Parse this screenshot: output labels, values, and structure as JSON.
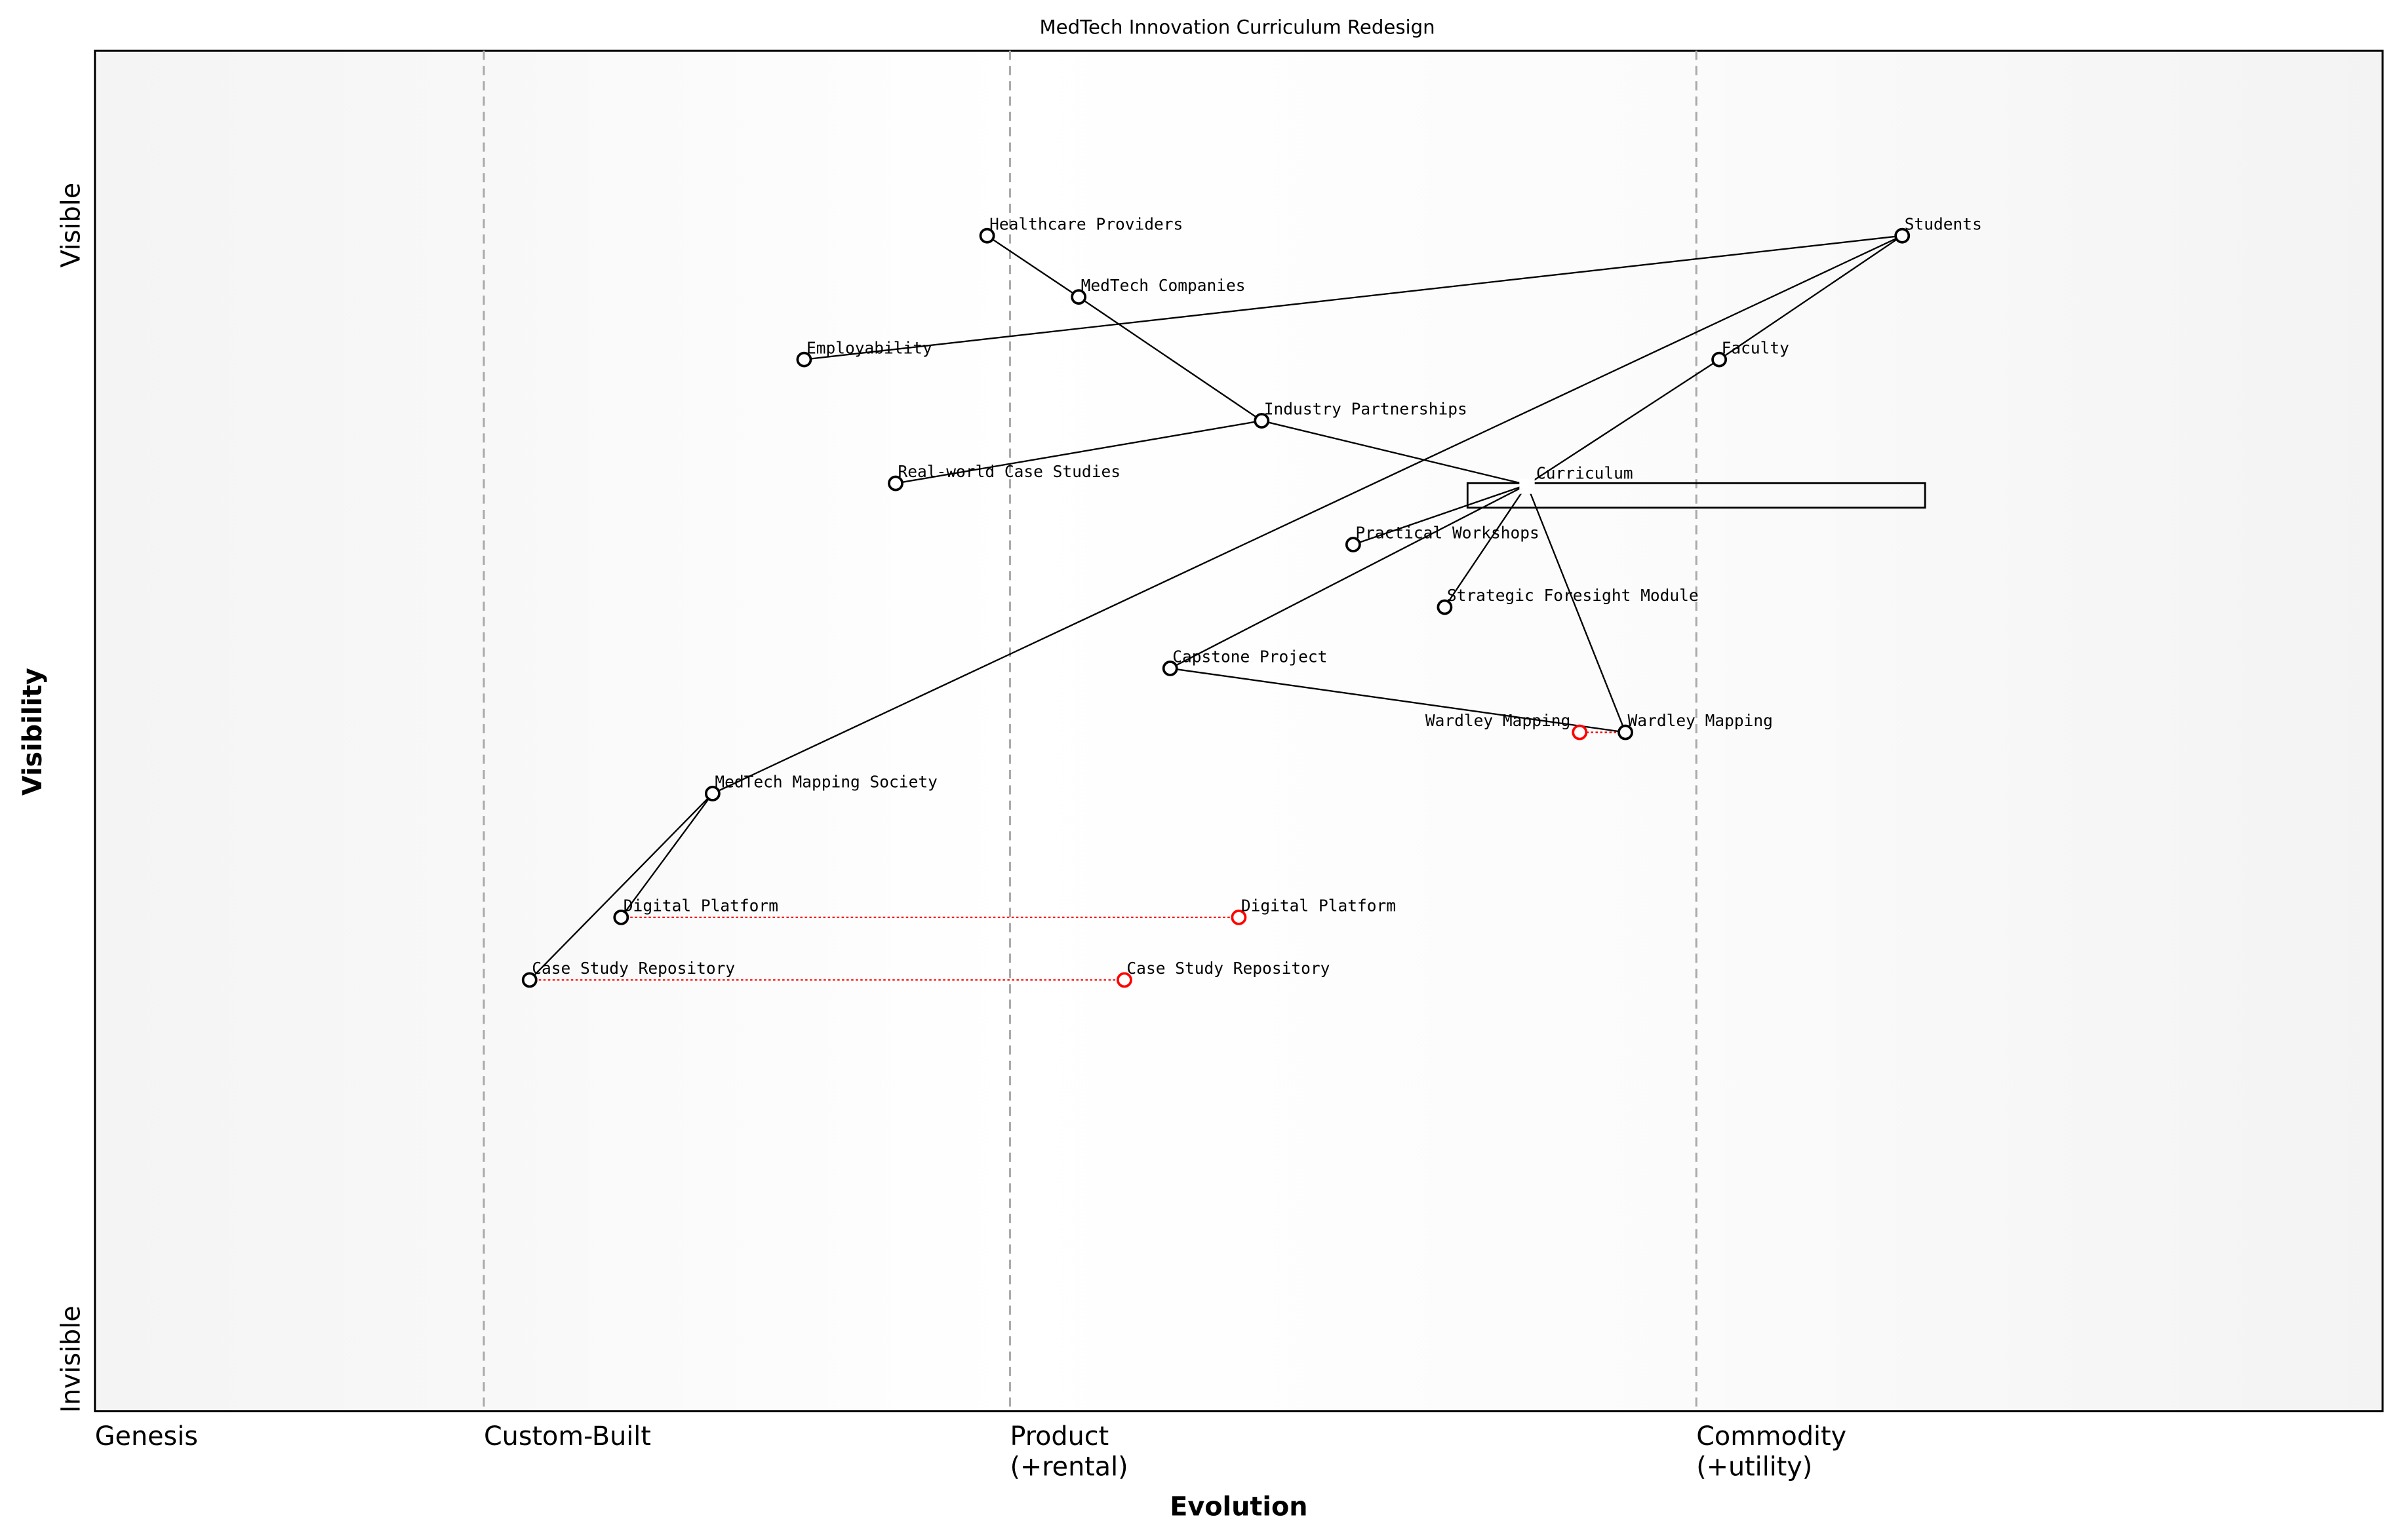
{
  "chart_data": {
    "type": "wardley-map",
    "title": "MedTech Innovation Curriculum Redesign",
    "xlabel": "Evolution",
    "ylabel": "Visibility",
    "y_ticks": [
      "Invisible",
      "Visible"
    ],
    "xlim": [
      0,
      1
    ],
    "ylim": [
      0,
      1
    ],
    "stages": [
      {
        "label": "Genesis",
        "start": 0.0
      },
      {
        "label": "Custom-Built",
        "start": 0.17
      },
      {
        "label": "Product\n(+rental)",
        "start": 0.4
      },
      {
        "label": "Commodity\n(+utility)",
        "start": 0.7
      }
    ],
    "components": [
      {
        "name": "Students",
        "evolution": 0.79,
        "visibility": 0.864
      },
      {
        "name": "Healthcare Providers",
        "evolution": 0.39,
        "visibility": 0.864
      },
      {
        "name": "MedTech Companies",
        "evolution": 0.43,
        "visibility": 0.819
      },
      {
        "name": "Employability",
        "evolution": 0.31,
        "visibility": 0.773
      },
      {
        "name": "Faculty",
        "evolution": 0.71,
        "visibility": 0.773
      },
      {
        "name": "Industry Partnerships",
        "evolution": 0.51,
        "visibility": 0.728
      },
      {
        "name": "Real-world Case Studies",
        "evolution": 0.35,
        "visibility": 0.682
      },
      {
        "name": "Curriculum",
        "evolution": 0.626,
        "visibility": 0.681,
        "hidden_marker": true
      },
      {
        "name": "Practical Workshops",
        "evolution": 0.55,
        "visibility": 0.637
      },
      {
        "name": "Strategic Foresight Module",
        "evolution": 0.59,
        "visibility": 0.591
      },
      {
        "name": "Capstone Project",
        "evolution": 0.47,
        "visibility": 0.546
      },
      {
        "name": "Wardley Mapping",
        "evolution": 0.669,
        "visibility": 0.499
      },
      {
        "name": "MedTech Mapping Society",
        "evolution": 0.27,
        "visibility": 0.454
      },
      {
        "name": "Digital Platform",
        "evolution": 0.23,
        "visibility": 0.363
      },
      {
        "name": "Case Study Repository",
        "evolution": 0.19,
        "visibility": 0.317
      }
    ],
    "evolved": [
      {
        "name": "Wardley Mapping",
        "from": 0.669,
        "to": 0.649,
        "visibility": 0.499
      },
      {
        "name": "Digital Platform",
        "from": 0.23,
        "to": 0.5,
        "visibility": 0.363
      },
      {
        "name": "Case Study Repository",
        "from": 0.19,
        "to": 0.45,
        "visibility": 0.317
      }
    ],
    "pipelines": [
      {
        "name": "Curriculum",
        "start": 0.6,
        "end": 0.8,
        "visibility": 0.681
      }
    ],
    "links": [
      [
        "Healthcare Providers",
        "MedTech Companies"
      ],
      [
        "MedTech Companies",
        "Industry Partnerships"
      ],
      [
        "Industry Partnerships",
        "Curriculum"
      ],
      [
        "Real-world Case Studies",
        "Industry Partnerships"
      ],
      [
        "Students",
        "Employability"
      ],
      [
        "Students",
        "Faculty"
      ],
      [
        "Students",
        "MedTech Mapping Society"
      ],
      [
        "Faculty",
        "Curriculum"
      ],
      [
        "Curriculum",
        "Practical Workshops"
      ],
      [
        "Curriculum",
        "Capstone Project"
      ],
      [
        "Curriculum",
        "Strategic Foresight Module"
      ],
      [
        "Curriculum",
        "Wardley Mapping"
      ],
      [
        "Capstone Project",
        "Wardley Mapping"
      ],
      [
        "MedTech Mapping Society",
        "Digital Platform"
      ],
      [
        "MedTech Mapping Society",
        "Case Study Repository"
      ]
    ],
    "colors": {
      "evolved": "#ff0000",
      "stage_divider": "#aaaaaa",
      "node": "#000000"
    }
  }
}
